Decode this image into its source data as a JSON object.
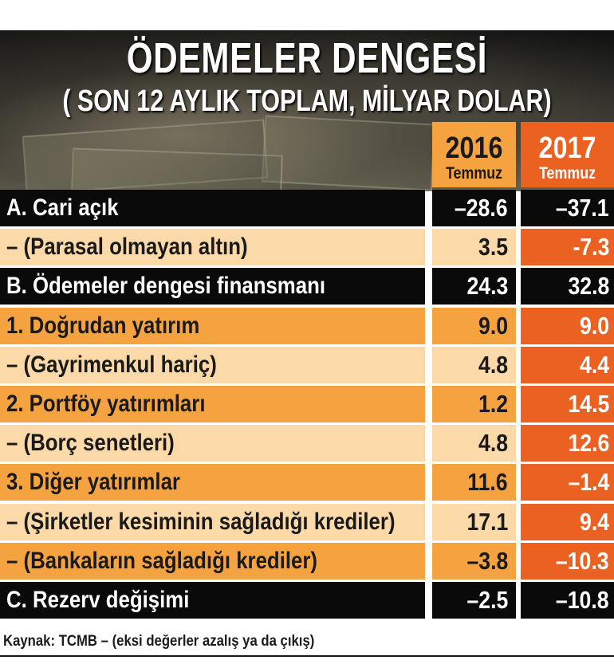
{
  "header": {
    "title": "ÖDEMELER DENGESİ",
    "subtitle": "( SON 12 AYLIK TOPLAM, MİLYAR DOLAR)"
  },
  "chart_data": {
    "type": "table",
    "title": "ÖDEMELER DENGESİ",
    "subtitle": "( SON 12 AYLIK TOPLAM, MİLYAR DOLAR)",
    "columns": [
      {
        "year": "2016",
        "month": "Temmuz"
      },
      {
        "year": "2017",
        "month": "Temmuz"
      }
    ],
    "rows": [
      {
        "label": "A. Cari açık",
        "v2016": "–28.6",
        "v2017": "–37.1",
        "style": "dark"
      },
      {
        "label": "– (Parasal olmayan altın)",
        "v2016": "3.5",
        "v2017": "-7.3",
        "style": "light"
      },
      {
        "label": "B. Ödemeler dengesi finansmanı",
        "v2016": "24.3",
        "v2017": "32.8",
        "style": "dark"
      },
      {
        "label": "1. Doğrudan yatırım",
        "v2016": "9.0",
        "v2017": "9.0",
        "style": "mid"
      },
      {
        "label": "– (Gayrimenkul hariç)",
        "v2016": "4.8",
        "v2017": "4.4",
        "style": "light"
      },
      {
        "label": "2. Portföy yatırımları",
        "v2016": "1.2",
        "v2017": "14.5",
        "style": "mid"
      },
      {
        "label": "– (Borç senetleri)",
        "v2016": "4.8",
        "v2017": "12.6",
        "style": "light"
      },
      {
        "label": "3. Diğer yatırımlar",
        "v2016": "11.6",
        "v2017": "–1.4",
        "style": "mid"
      },
      {
        "label": "– (Şirketler kesiminin sağladığı krediler)",
        "v2016": "17.1",
        "v2017": "9.4",
        "style": "light"
      },
      {
        "label": "– (Bankaların sağladığı krediler)",
        "v2016": "–3.8",
        "v2017": "–10.3",
        "style": "mid"
      },
      {
        "label": "C. Rezerv değişimi",
        "v2016": "–2.5",
        "v2017": "–10.8",
        "style": "dark"
      }
    ]
  },
  "source": "Kaynak: TCMB – (eksi değerler azalış ya da çıkış)",
  "colors": {
    "dark": "#0a0a0a",
    "light_orange": "#fbd9a8",
    "mid_orange": "#f5a340",
    "accent_orange": "#ea6121"
  }
}
